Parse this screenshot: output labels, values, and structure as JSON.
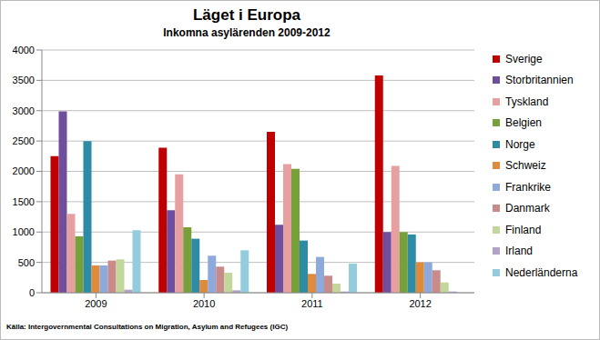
{
  "chart_data": {
    "type": "bar",
    "title": "Läget i Europa",
    "subtitle": "Inkomna asylärenden 2009-2012",
    "source": "Källa: Intergovernmental Consultations on Migration, Asylum and Refugees (IGC)",
    "categories": [
      "2009",
      "2010",
      "2011",
      "2012"
    ],
    "series": [
      {
        "name": "Sverige",
        "color": "#C00000",
        "values": [
          2250,
          2390,
          2650,
          3580
        ]
      },
      {
        "name": "Storbritannien",
        "color": "#6F4E9B",
        "values": [
          2990,
          1360,
          1120,
          1000
        ]
      },
      {
        "name": "Tyskland",
        "color": "#E6A0A0",
        "values": [
          1300,
          1950,
          2120,
          2090
        ]
      },
      {
        "name": "Belgien",
        "color": "#77A03A",
        "values": [
          930,
          1080,
          2040,
          1000
        ]
      },
      {
        "name": "Norge",
        "color": "#2E8BA5",
        "values": [
          2500,
          890,
          860,
          960
        ]
      },
      {
        "name": "Schweiz",
        "color": "#E08A3C",
        "values": [
          450,
          210,
          310,
          500
        ]
      },
      {
        "name": "Frankrike",
        "color": "#8EA9DB",
        "values": [
          450,
          610,
          590,
          500
        ]
      },
      {
        "name": "Danmark",
        "color": "#C98A8A",
        "values": [
          530,
          430,
          280,
          370
        ]
      },
      {
        "name": "Finland",
        "color": "#C3D69B",
        "values": [
          550,
          330,
          150,
          170
        ]
      },
      {
        "name": "Irland",
        "color": "#B3A2C7",
        "values": [
          50,
          40,
          20,
          20
        ]
      },
      {
        "name": "Nederländerna",
        "color": "#93CDDD",
        "values": [
          1030,
          700,
          480,
          null
        ]
      }
    ],
    "ylim": [
      0,
      4000
    ],
    "yticks": [
      0,
      500,
      1000,
      1500,
      2000,
      2500,
      3000,
      3500,
      4000
    ],
    "grid": true,
    "legend": "right"
  }
}
